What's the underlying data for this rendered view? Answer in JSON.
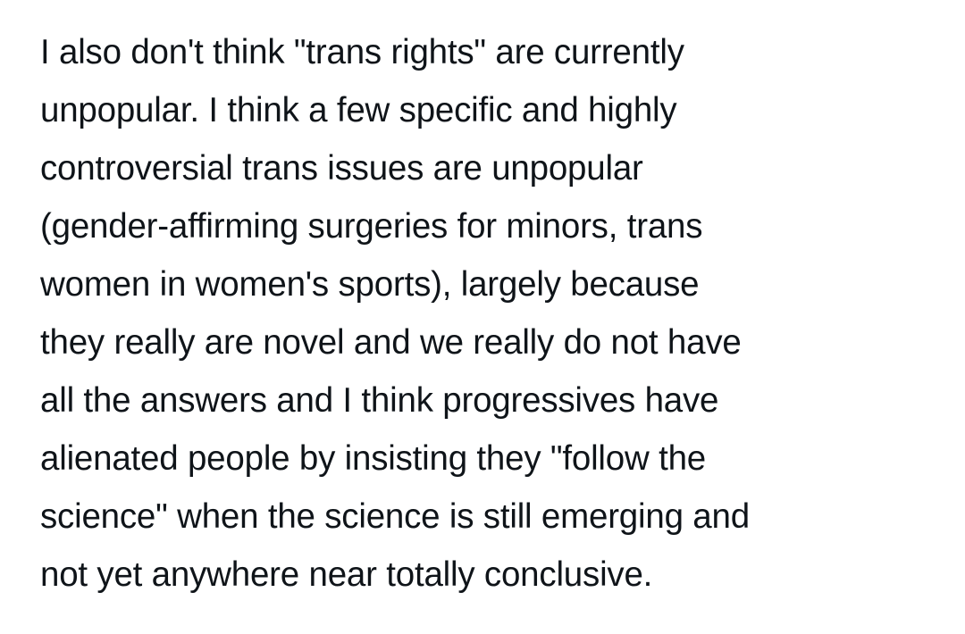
{
  "post": {
    "lines": [
      "I also don't think \"trans rights\" are currently",
      "unpopular. I think a few specific and highly",
      "controversial trans issues are unpopular",
      "(gender-affirming surgeries for minors, trans",
      "women in women's sports), largely because",
      "they really are novel and we really do not have",
      "all the answers and I think progressives have",
      "alienated people by insisting they \"follow the",
      "science\" when the science is still emerging and",
      "not yet anywhere near totally conclusive."
    ]
  }
}
